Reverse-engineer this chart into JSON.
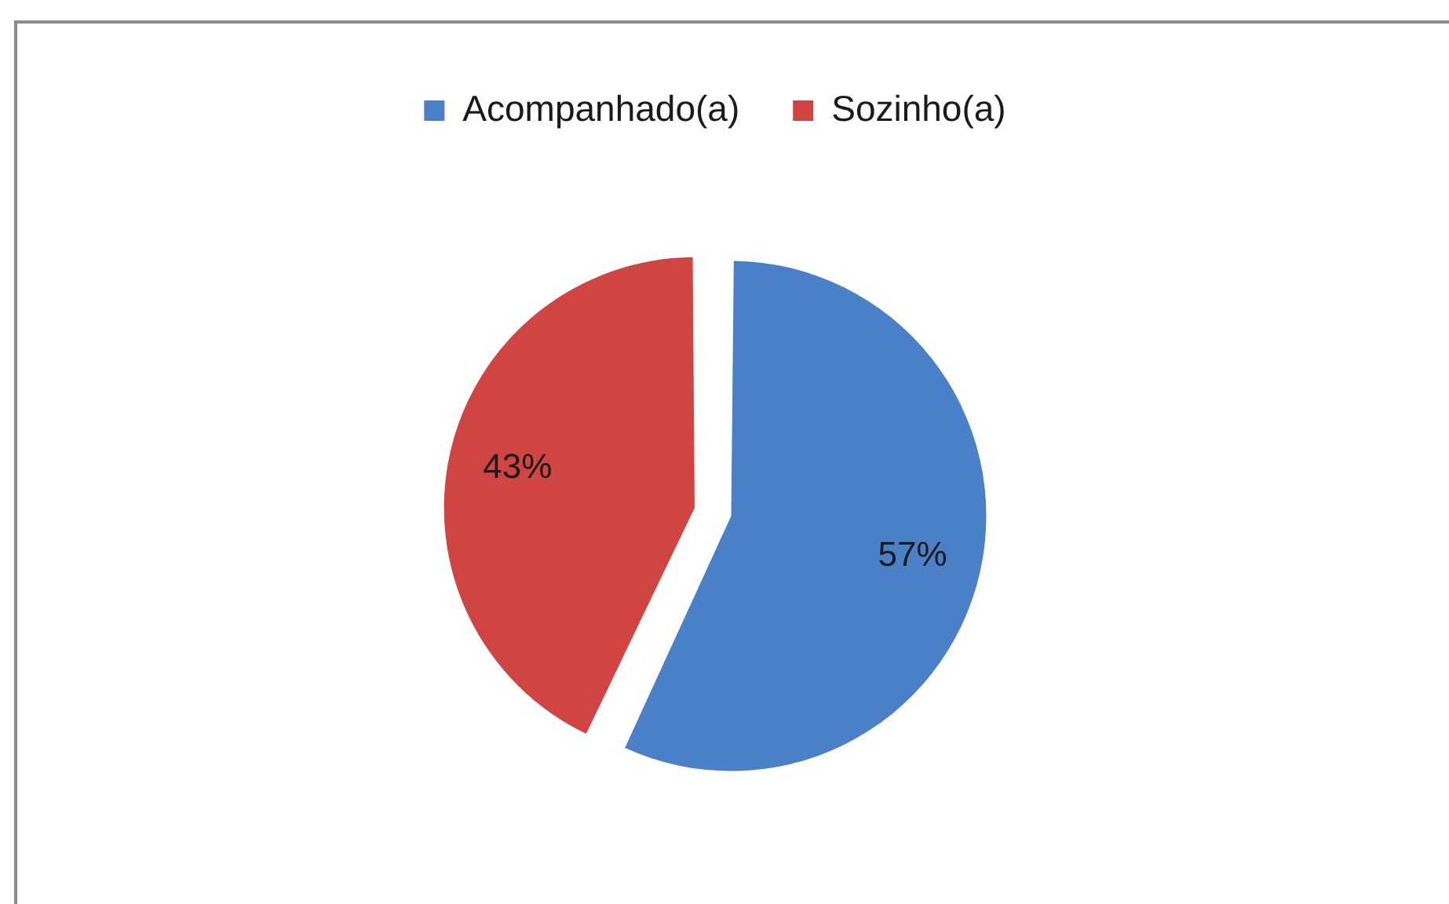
{
  "chart_data": {
    "type": "pie",
    "categories": [
      "Acompanhado(a)",
      "Sozinho(a)"
    ],
    "values": [
      57,
      43
    ],
    "colors": [
      "#4a80c8",
      "#d04541"
    ],
    "value_labels": [
      "57%",
      "43%"
    ],
    "legend": "top"
  }
}
